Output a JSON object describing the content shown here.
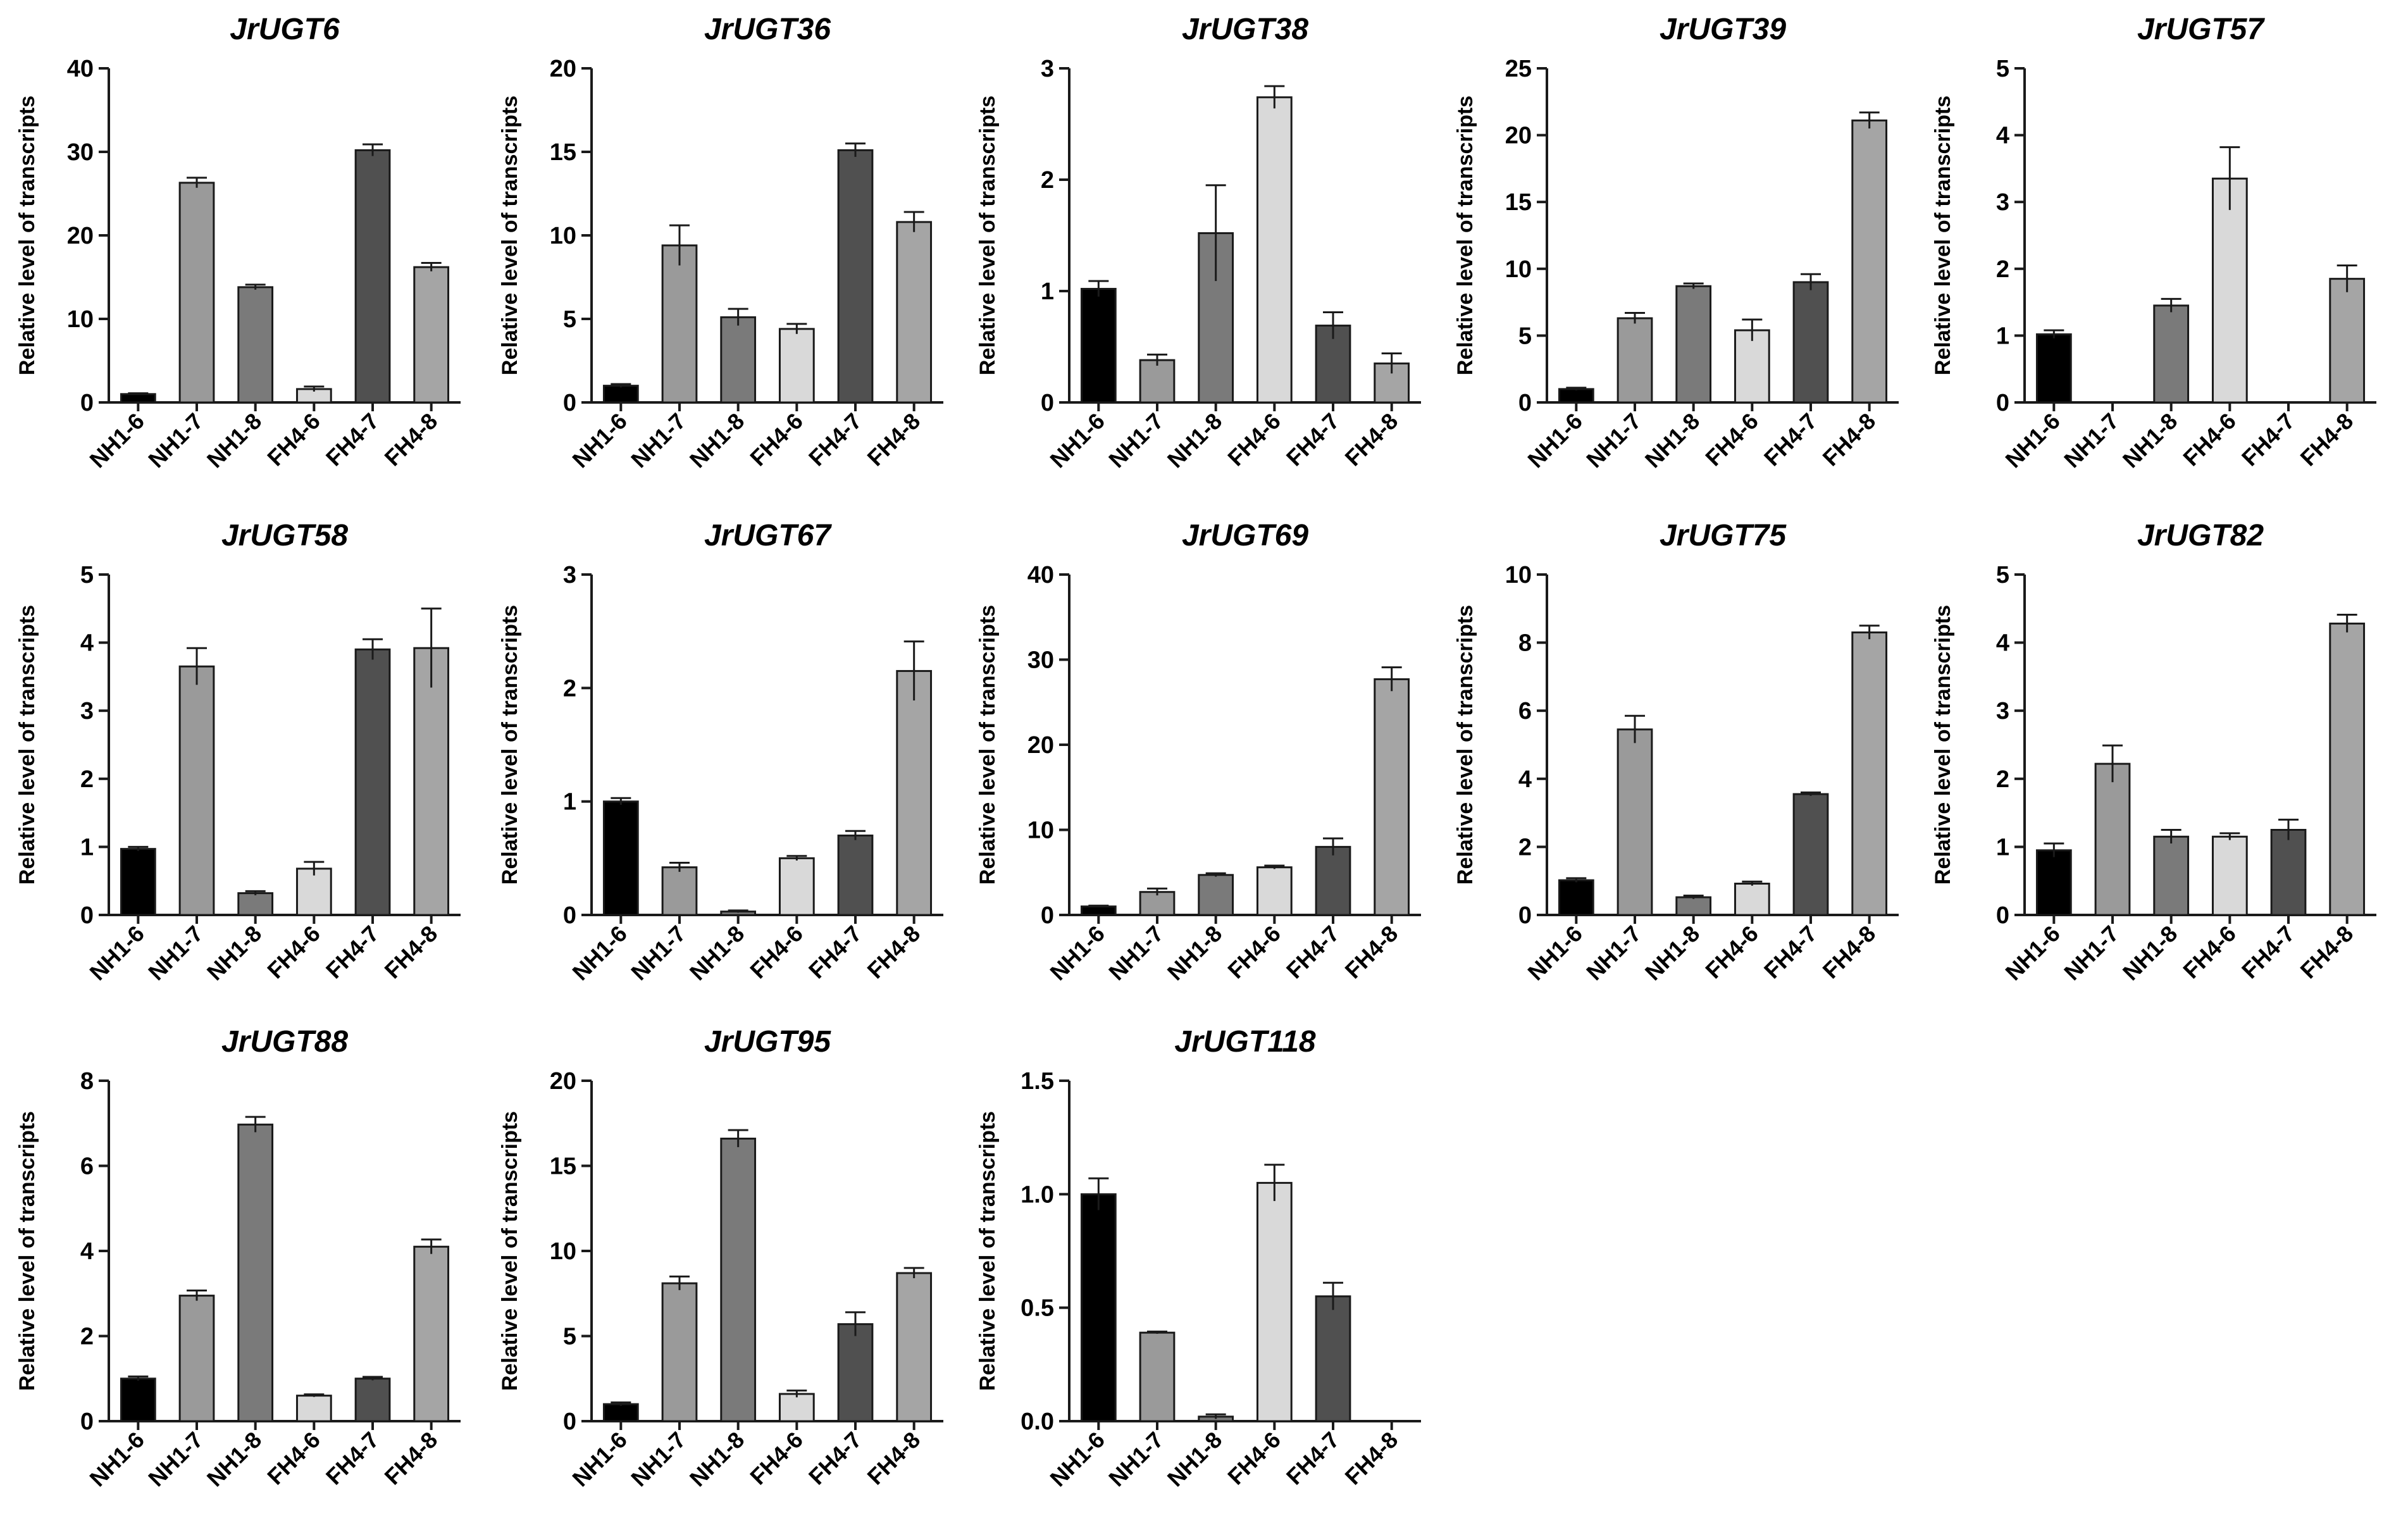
{
  "categories": [
    "NH1-6",
    "NH1-7",
    "NH1-8",
    "FH4-6",
    "FH4-7",
    "FH4-8"
  ],
  "bar_colors": [
    "#000000",
    "#9a9a9a",
    "#7a7a7a",
    "#d9d9d9",
    "#505050",
    "#a5a5a5"
  ],
  "chart_data": [
    {
      "type": "bar",
      "title": "JrUGT6",
      "ylabel": "Relative level of transcripts",
      "ylim": [
        0,
        40
      ],
      "yticks": [
        "0",
        "10",
        "20",
        "30",
        "40"
      ],
      "values": [
        1.0,
        26.3,
        13.8,
        1.6,
        30.2,
        16.2
      ],
      "errors": [
        0.1,
        0.6,
        0.3,
        0.3,
        0.7,
        0.5
      ]
    },
    {
      "type": "bar",
      "title": "JrUGT36",
      "ylabel": "Relative level of transcripts",
      "ylim": [
        0,
        20
      ],
      "yticks": [
        "0",
        "5",
        "10",
        "15",
        "20"
      ],
      "values": [
        1.0,
        9.4,
        5.1,
        4.4,
        15.1,
        10.8
      ],
      "errors": [
        0.1,
        1.2,
        0.5,
        0.3,
        0.4,
        0.6
      ]
    },
    {
      "type": "bar",
      "title": "JrUGT38",
      "ylabel": "Relative level of transcripts",
      "ylim": [
        0,
        3
      ],
      "yticks": [
        "0",
        "1",
        "2",
        "3"
      ],
      "values": [
        1.02,
        0.38,
        1.52,
        2.74,
        0.69,
        0.35
      ],
      "errors": [
        0.07,
        0.05,
        0.43,
        0.1,
        0.12,
        0.09
      ]
    },
    {
      "type": "bar",
      "title": "JrUGT39",
      "ylabel": "Relative level of transcripts",
      "ylim": [
        0,
        25
      ],
      "yticks": [
        "0",
        "5",
        "10",
        "15",
        "20",
        "25"
      ],
      "values": [
        1.0,
        6.3,
        8.7,
        5.4,
        9.0,
        21.1
      ],
      "errors": [
        0.1,
        0.4,
        0.2,
        0.8,
        0.6,
        0.6
      ]
    },
    {
      "type": "bar",
      "title": "JrUGT57",
      "ylabel": "Relative level of transcripts",
      "ylim": [
        0,
        5
      ],
      "yticks": [
        "0",
        "1",
        "2",
        "3",
        "4",
        "5"
      ],
      "values": [
        1.02,
        0.0,
        1.45,
        3.35,
        0.0,
        1.85
      ],
      "errors": [
        0.06,
        0.0,
        0.1,
        0.47,
        0.0,
        0.2
      ]
    },
    {
      "type": "bar",
      "title": "JrUGT58",
      "ylabel": "Relative level of transcripts",
      "ylim": [
        0,
        5
      ],
      "yticks": [
        "0",
        "1",
        "2",
        "3",
        "4",
        "5"
      ],
      "values": [
        0.97,
        3.65,
        0.32,
        0.68,
        3.9,
        3.92
      ],
      "errors": [
        0.03,
        0.27,
        0.03,
        0.1,
        0.15,
        0.58
      ]
    },
    {
      "type": "bar",
      "title": "JrUGT67",
      "ylabel": "Relative level of transcripts",
      "ylim": [
        0,
        3
      ],
      "yticks": [
        "0",
        "1",
        "2",
        "3"
      ],
      "values": [
        1.0,
        0.42,
        0.03,
        0.5,
        0.7,
        2.15
      ],
      "errors": [
        0.03,
        0.04,
        0.01,
        0.02,
        0.04,
        0.26
      ]
    },
    {
      "type": "bar",
      "title": "JrUGT69",
      "ylabel": "Relative level of transcripts",
      "ylim": [
        0,
        40
      ],
      "yticks": [
        "0",
        "10",
        "20",
        "30",
        "40"
      ],
      "values": [
        1.0,
        2.7,
        4.7,
        5.6,
        8.0,
        27.7
      ],
      "errors": [
        0.1,
        0.4,
        0.2,
        0.2,
        1.0,
        1.4
      ]
    },
    {
      "type": "bar",
      "title": "JrUGT75",
      "ylabel": "Relative level of transcripts",
      "ylim": [
        0,
        10
      ],
      "yticks": [
        "0",
        "2",
        "4",
        "6",
        "8",
        "10"
      ],
      "values": [
        1.02,
        5.45,
        0.52,
        0.92,
        3.55,
        8.3
      ],
      "errors": [
        0.06,
        0.4,
        0.05,
        0.06,
        0.05,
        0.2
      ]
    },
    {
      "type": "bar",
      "title": "JrUGT82",
      "ylabel": "Relative level of transcripts",
      "ylim": [
        0,
        5
      ],
      "yticks": [
        "0",
        "1",
        "2",
        "3",
        "4",
        "5"
      ],
      "values": [
        0.95,
        2.22,
        1.15,
        1.15,
        1.25,
        4.28
      ],
      "errors": [
        0.1,
        0.27,
        0.1,
        0.05,
        0.15,
        0.13
      ]
    },
    {
      "type": "bar",
      "title": "JrUGT88",
      "ylabel": "Relative level of transcripts",
      "ylim": [
        0,
        8
      ],
      "yticks": [
        "0",
        "2",
        "4",
        "6",
        "8"
      ],
      "values": [
        1.0,
        2.95,
        6.97,
        0.6,
        1.0,
        4.1
      ],
      "errors": [
        0.05,
        0.12,
        0.18,
        0.03,
        0.04,
        0.17
      ]
    },
    {
      "type": "bar",
      "title": "JrUGT95",
      "ylabel": "Relative level of transcripts",
      "ylim": [
        0,
        20
      ],
      "yticks": [
        "0",
        "5",
        "10",
        "15",
        "20"
      ],
      "values": [
        1.0,
        8.1,
        16.6,
        1.6,
        5.7,
        8.7
      ],
      "errors": [
        0.1,
        0.4,
        0.5,
        0.2,
        0.7,
        0.3
      ]
    },
    {
      "type": "bar",
      "title": "JrUGT118",
      "ylabel": "Relative level of transcripts",
      "ylim": [
        0,
        1.5
      ],
      "yticks": [
        "0.0",
        "0.5",
        "1.0",
        "1.5"
      ],
      "values": [
        1.0,
        0.39,
        0.02,
        1.05,
        0.55,
        0.0
      ],
      "errors": [
        0.07,
        0.005,
        0.01,
        0.08,
        0.06,
        0.0
      ]
    }
  ]
}
